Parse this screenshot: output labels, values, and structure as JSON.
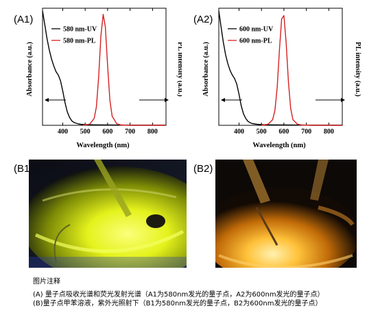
{
  "panels": {
    "a1": {
      "label": "(A1)",
      "legend": [
        "580 nm-UV",
        "580 nm-PL"
      ]
    },
    "a2": {
      "label": "(A2)",
      "legend": [
        "600 nm-UV",
        "600 nm-PL"
      ]
    },
    "b1": {
      "label": "(B1)"
    },
    "b2": {
      "label": "(B2)"
    }
  },
  "caption": {
    "title": "图片注释",
    "line1": "(A) 量子点吸收光谱和荧光发射光谱（A1为580nm发光的量子点，A2为600nm发光的量子点）",
    "line2": "(B)量子点甲苯溶液，紫外光照射下（B1为580nm发光的量子点，B2为600nm发光的量子点）"
  },
  "colors": {
    "uv": "#000000",
    "pl": "#d42020"
  },
  "chart_data": [
    {
      "type": "line",
      "xlabel": "Wavelength (nm)",
      "ylabel": "Absorbance (a.u.)",
      "ylabel_right": "PL intensity (a.u.)",
      "xlim": [
        310,
        860
      ],
      "ylim": [
        0,
        1
      ],
      "x_ticks": [
        400,
        500,
        600,
        700,
        800
      ],
      "grid": false,
      "legend_position": "top-left",
      "series": [
        {
          "name": "580 nm-UV",
          "color": "#000000",
          "axis": "left",
          "x": [
            310,
            320,
            330,
            340,
            350,
            360,
            370,
            380,
            390,
            400,
            410,
            420,
            430,
            440,
            450,
            460,
            470,
            480,
            500,
            540,
            600,
            700,
            860
          ],
          "y": [
            1.0,
            0.88,
            0.76,
            0.66,
            0.58,
            0.52,
            0.47,
            0.44,
            0.39,
            0.3,
            0.2,
            0.12,
            0.07,
            0.04,
            0.025,
            0.018,
            0.012,
            0.009,
            0.006,
            0.004,
            0.003,
            0.002,
            0.002
          ]
        },
        {
          "name": "580 nm-PL",
          "color": "#d42020",
          "axis": "right",
          "x": [
            490,
            520,
            540,
            550,
            560,
            570,
            580,
            590,
            600,
            610,
            620,
            640,
            660,
            700,
            860
          ],
          "y": [
            0,
            0.01,
            0.06,
            0.16,
            0.42,
            0.78,
            0.97,
            0.86,
            0.52,
            0.22,
            0.08,
            0.015,
            0.003,
            0,
            0
          ]
        }
      ]
    },
    {
      "type": "line",
      "xlabel": "Wavelength (nm)",
      "ylabel": "Absorbance (a.u.)",
      "ylabel_right": "PL intensity (a.u.)",
      "xlim": [
        310,
        860
      ],
      "ylim": [
        0,
        1
      ],
      "x_ticks": [
        400,
        500,
        600,
        700,
        800
      ],
      "grid": false,
      "legend_position": "top-left",
      "series": [
        {
          "name": "600 nm-UV",
          "color": "#000000",
          "axis": "left",
          "x": [
            310,
            320,
            330,
            340,
            350,
            360,
            370,
            380,
            390,
            400,
            410,
            420,
            430,
            440,
            450,
            460,
            480,
            500,
            540,
            600,
            700,
            860
          ],
          "y": [
            1.0,
            0.86,
            0.73,
            0.62,
            0.54,
            0.48,
            0.44,
            0.41,
            0.36,
            0.27,
            0.17,
            0.1,
            0.06,
            0.035,
            0.022,
            0.015,
            0.009,
            0.006,
            0.004,
            0.003,
            0.002,
            0.002
          ]
        },
        {
          "name": "600 nm-PL",
          "color": "#d42020",
          "axis": "right",
          "x": [
            500,
            530,
            550,
            560,
            570,
            580,
            590,
            600,
            610,
            620,
            630,
            640,
            660,
            680,
            720,
            860
          ],
          "y": [
            0,
            0.01,
            0.05,
            0.13,
            0.33,
            0.66,
            0.93,
            0.96,
            0.72,
            0.38,
            0.15,
            0.05,
            0.01,
            0.003,
            0,
            0
          ]
        }
      ]
    }
  ]
}
